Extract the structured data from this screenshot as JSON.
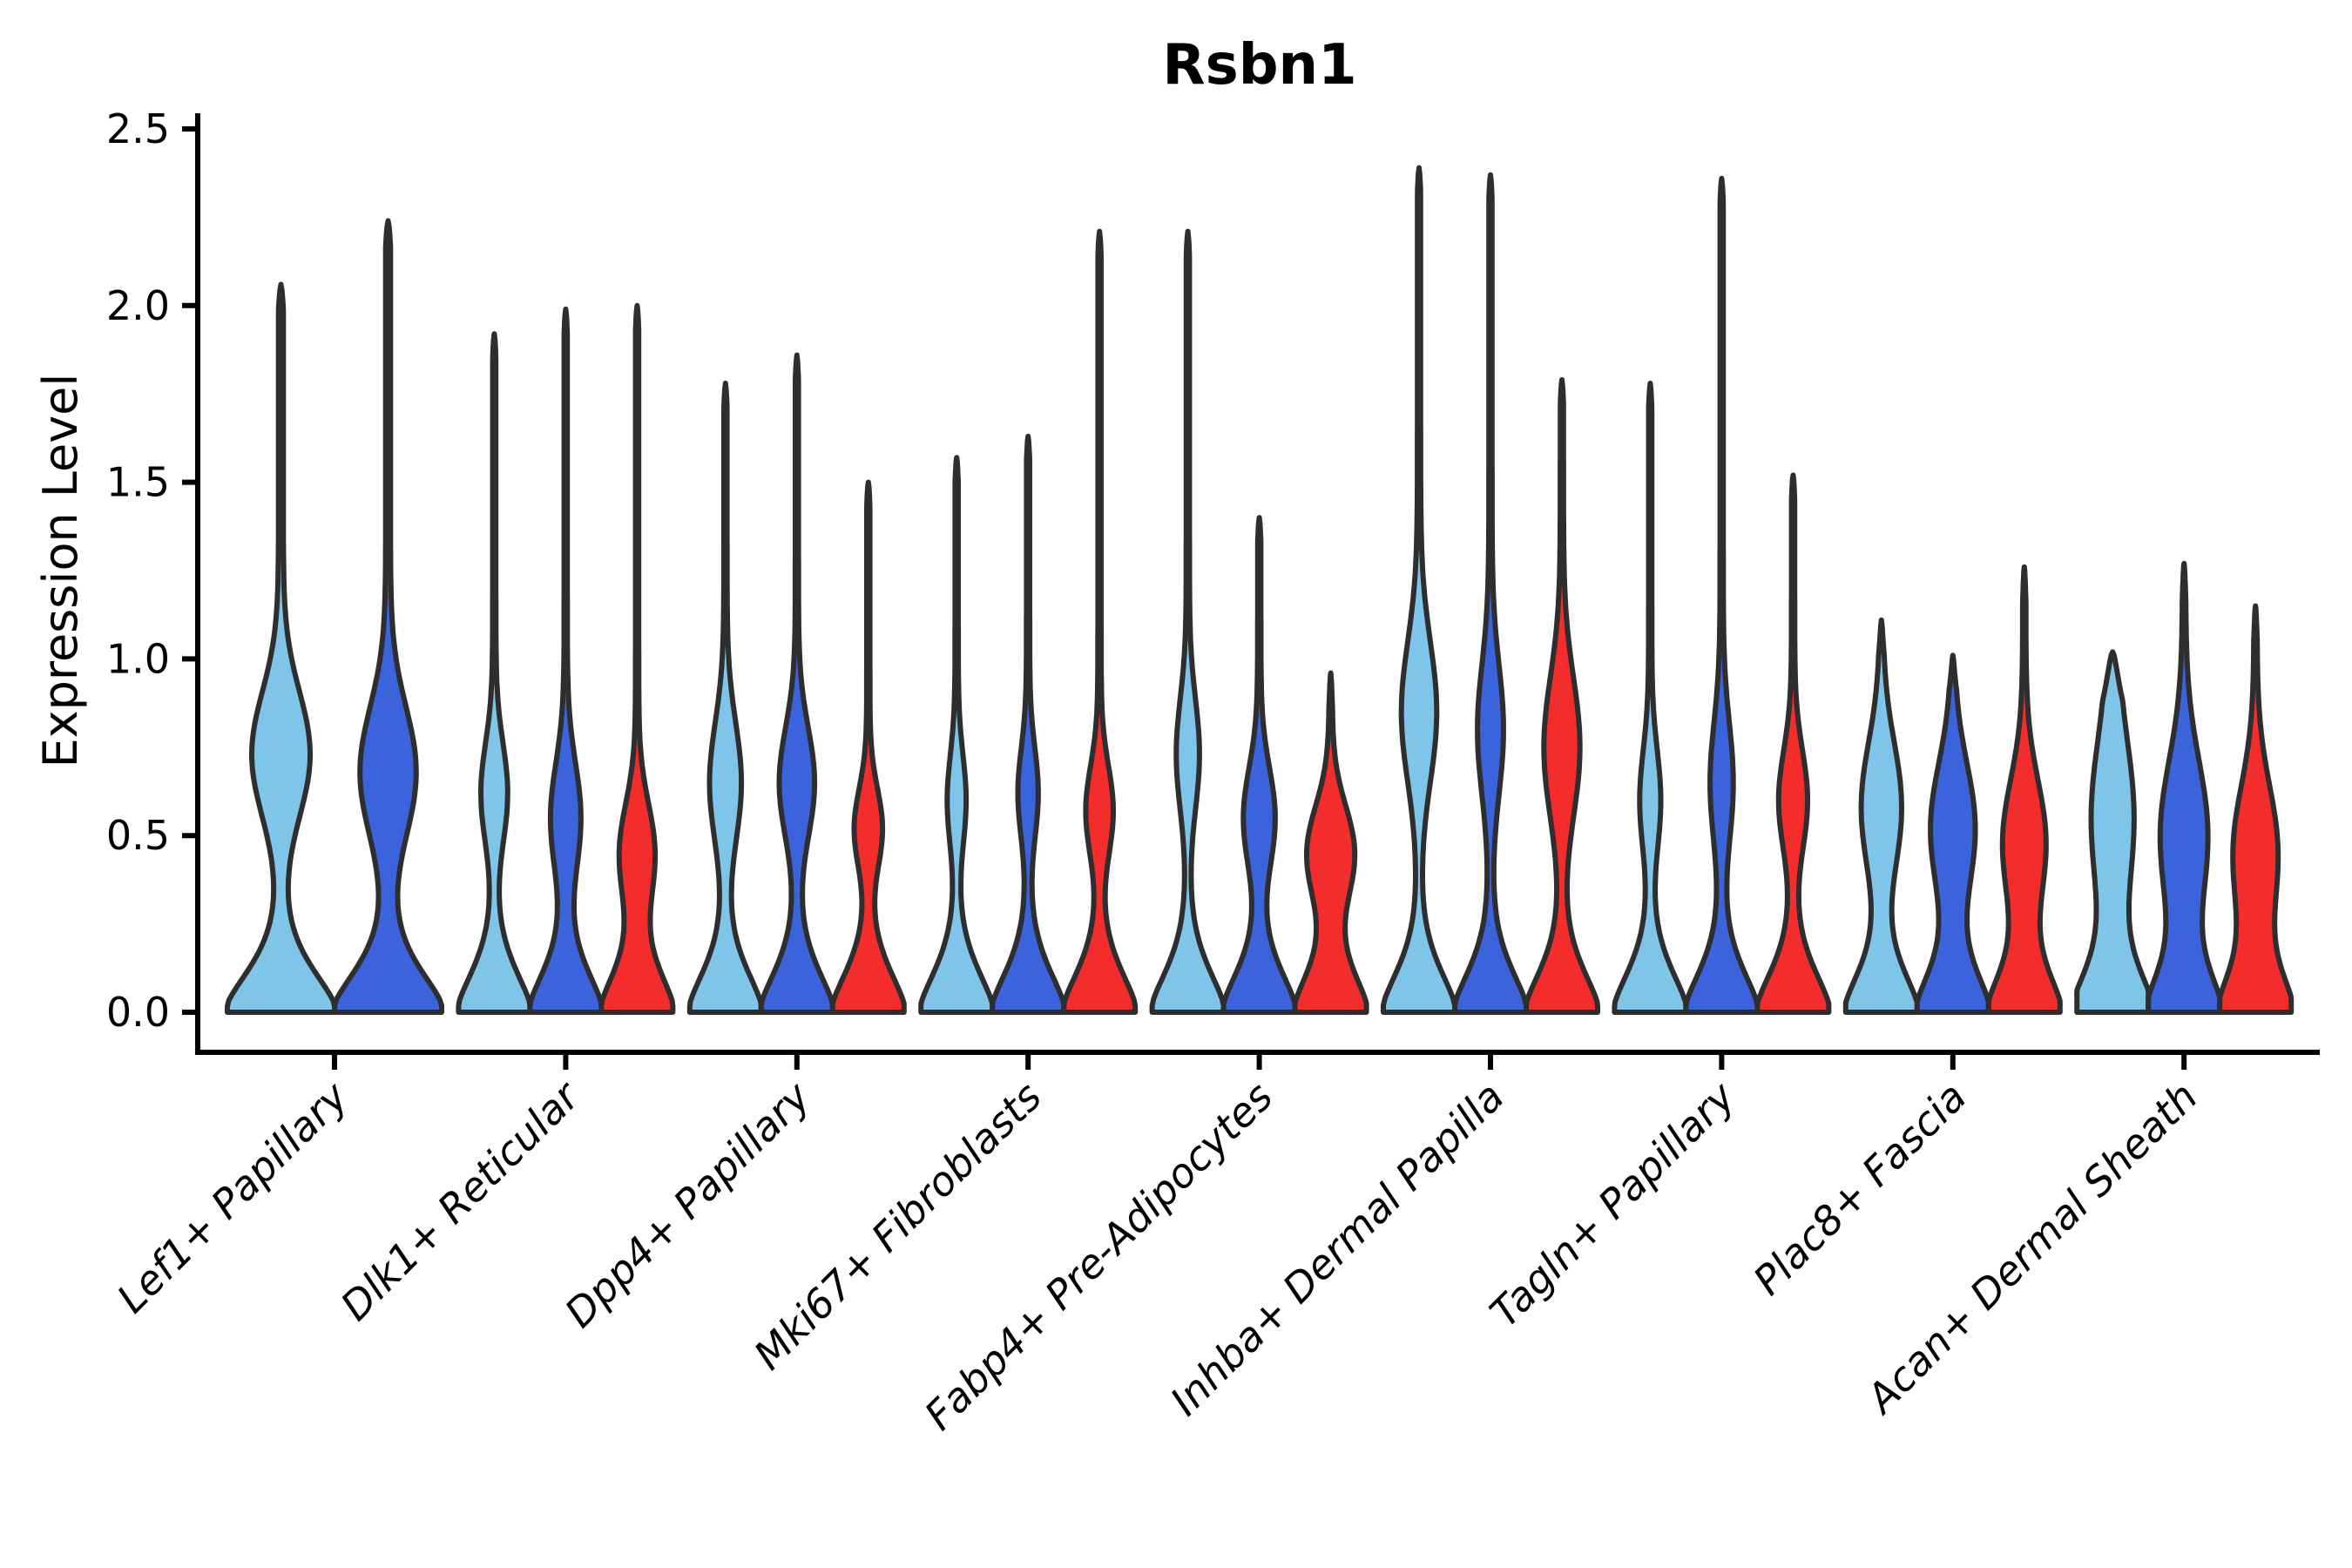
{
  "chart_data": {
    "type": "violin",
    "title": "Rsbn1",
    "ylabel": "Expression Level",
    "xlabel": "",
    "ylim": [
      0.0,
      2.5
    ],
    "ytick_labels": [
      "0.0",
      "0.5",
      "1.0",
      "1.5",
      "2.0",
      "2.5"
    ],
    "grid": false,
    "legend_position": "none",
    "palette": {
      "light_blue": "#7FC5EA",
      "dark_blue": "#3A63DC",
      "red": "#F32C2C"
    },
    "outline_color": "#2e2e2e",
    "axis_color": "#000000",
    "categories": [
      "Lef1+ Papillary",
      "Dlk1+ Reticular",
      "Dpp4+ Papillary",
      "Mki67+ Fibroblasts",
      "Fabp4+ Pre-Adipocytes",
      "Inhba+ Dermal Papilla",
      "Tagln+ Papillary",
      "Plac8+ Fascia",
      "Acan+ Dermal Sheath"
    ],
    "groups": [
      {
        "label": "Lef1+ Papillary",
        "violins": [
          {
            "color": "light_blue",
            "max": 2.06,
            "mode": 0.73,
            "amp": 0.5,
            "spread": 0.25
          },
          {
            "color": "dark_blue",
            "max": 2.24,
            "mode": 0.68,
            "amp": 0.48,
            "spread": 0.26
          }
        ]
      },
      {
        "label": "Dlk1+ Reticular",
        "violins": [
          {
            "color": "light_blue",
            "max": 1.92,
            "mode": 0.62,
            "amp": 0.33,
            "spread": 0.2
          },
          {
            "color": "dark_blue",
            "max": 1.99,
            "mode": 0.55,
            "amp": 0.38,
            "spread": 0.22
          },
          {
            "color": "red",
            "max": 2.0,
            "mode": 0.45,
            "amp": 0.45,
            "spread": 0.2
          }
        ]
      },
      {
        "label": "Dpp4+ Papillary",
        "violins": [
          {
            "color": "light_blue",
            "max": 1.78,
            "mode": 0.65,
            "amp": 0.4,
            "spread": 0.24
          },
          {
            "color": "dark_blue",
            "max": 1.86,
            "mode": 0.65,
            "amp": 0.45,
            "spread": 0.22
          },
          {
            "color": "red",
            "max": 1.5,
            "mode": 0.52,
            "amp": 0.35,
            "spread": 0.16
          }
        ]
      },
      {
        "label": "Mki67+ Fibroblasts",
        "violins": [
          {
            "color": "light_blue",
            "max": 1.57,
            "mode": 0.6,
            "amp": 0.22,
            "spread": 0.18
          },
          {
            "color": "dark_blue",
            "max": 1.63,
            "mode": 0.62,
            "amp": 0.24,
            "spread": 0.18
          },
          {
            "color": "red",
            "max": 2.21,
            "mode": 0.57,
            "amp": 0.34,
            "spread": 0.18
          }
        ]
      },
      {
        "label": "Fabp4+ Pre-Adipocytes",
        "violins": [
          {
            "color": "light_blue",
            "max": 2.21,
            "mode": 0.73,
            "amp": 0.28,
            "spread": 0.22
          },
          {
            "color": "dark_blue",
            "max": 1.4,
            "mode": 0.55,
            "amp": 0.4,
            "spread": 0.2
          },
          {
            "color": "red",
            "max": 0.96,
            "mode": 0.45,
            "amp": 0.62,
            "spread": 0.19,
            "taper": 0.1
          }
        ]
      },
      {
        "label": "Inhba+ Dermal Papilla",
        "violins": [
          {
            "color": "light_blue",
            "max": 2.39,
            "mode": 0.85,
            "amp": 0.45,
            "spread": 0.28
          },
          {
            "color": "dark_blue",
            "max": 2.37,
            "mode": 0.8,
            "amp": 0.32,
            "spread": 0.26
          },
          {
            "color": "red",
            "max": 1.79,
            "mode": 0.75,
            "amp": 0.46,
            "spread": 0.28
          }
        ]
      },
      {
        "label": "Tagln+ Papillary",
        "violins": [
          {
            "color": "light_blue",
            "max": 1.78,
            "mode": 0.6,
            "amp": 0.25,
            "spread": 0.2
          },
          {
            "color": "dark_blue",
            "max": 2.36,
            "mode": 0.65,
            "amp": 0.28,
            "spread": 0.24
          },
          {
            "color": "red",
            "max": 1.52,
            "mode": 0.6,
            "amp": 0.36,
            "spread": 0.2
          }
        ]
      },
      {
        "label": "Plac8+ Fascia",
        "violins": [
          {
            "color": "light_blue",
            "max": 1.11,
            "mode": 0.58,
            "amp": 0.52,
            "spread": 0.26,
            "taper": 0.1
          },
          {
            "color": "dark_blue",
            "max": 1.01,
            "mode": 0.52,
            "amp": 0.58,
            "spread": 0.26,
            "taper": 0.1
          },
          {
            "color": "red",
            "max": 1.26,
            "mode": 0.48,
            "amp": 0.56,
            "spread": 0.25,
            "taper": 0.1
          }
        ]
      },
      {
        "label": "Acan+ Dermal Sheath",
        "violins": [
          {
            "color": "light_blue",
            "max": 1.02,
            "mode": 0.55,
            "amp": 0.45,
            "spread": 0.3,
            "stem": 0.15,
            "taper": 0.14
          },
          {
            "color": "dark_blue",
            "max": 1.27,
            "mode": 0.5,
            "amp": 0.62,
            "spread": 0.3,
            "taper": 0.1
          },
          {
            "color": "red",
            "max": 1.15,
            "mode": 0.45,
            "amp": 0.58,
            "spread": 0.27,
            "taper": 0.1
          }
        ]
      }
    ]
  }
}
